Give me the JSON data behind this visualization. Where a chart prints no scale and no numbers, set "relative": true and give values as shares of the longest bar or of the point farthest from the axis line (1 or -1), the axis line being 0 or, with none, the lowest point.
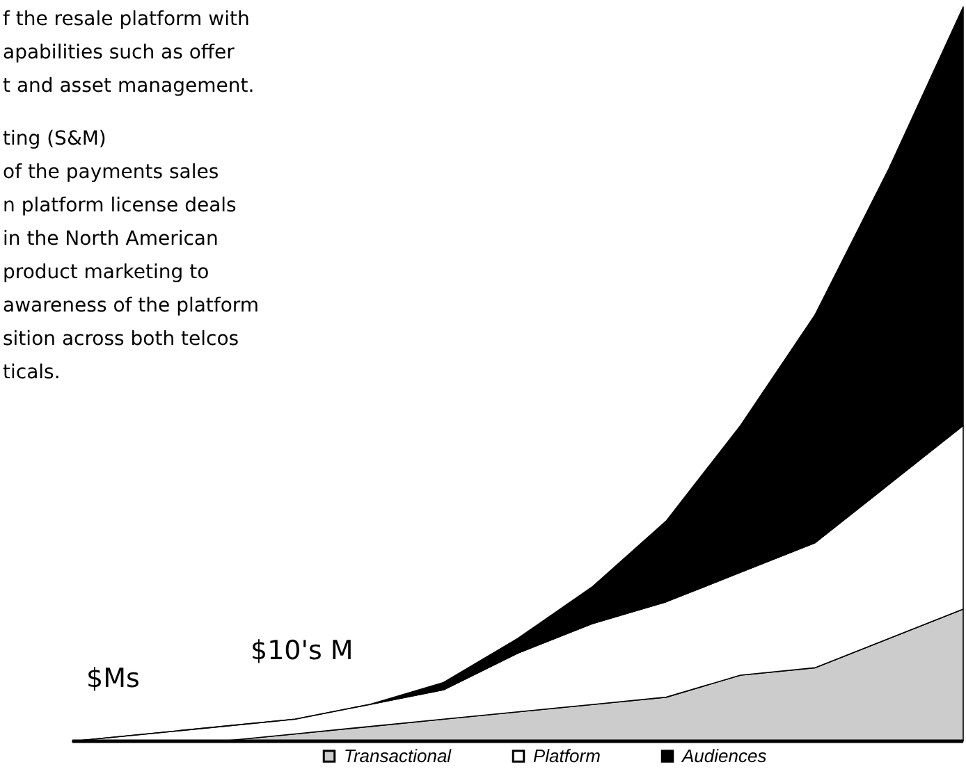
{
  "chart_data": {
    "type": "area",
    "stacked": true,
    "relative": true,
    "legend": "bottom",
    "categories": [
      null,
      null,
      null,
      null,
      null,
      null,
      null,
      null,
      null,
      null,
      null,
      null,
      null
    ],
    "series": [
      {
        "name": "Transactional",
        "color": "#cccccc",
        "values": [
          0,
          0,
          0,
          0.01,
          0.02,
          0.03,
          0.04,
          0.05,
          0.06,
          0.09,
          0.1,
          0.14,
          0.18
        ]
      },
      {
        "name": "Platform",
        "color": "#ffffff",
        "values": [
          0,
          0.01,
          0.02,
          0.02,
          0.03,
          0.04,
          0.08,
          0.11,
          0.13,
          0.14,
          0.17,
          0.21,
          0.25
        ]
      },
      {
        "name": "Audiences",
        "color": "#000000",
        "values": [
          0,
          0,
          0,
          0,
          0,
          0.01,
          0.02,
          0.05,
          0.11,
          0.2,
          0.31,
          0.43,
          0.57
        ]
      }
    ],
    "annotations": [
      "f the resale platform with",
      "apabilities such as offer",
      "t and asset management.",
      "ting (S&M)",
      "of the payments sales",
      "n platform license deals",
      "in the North American",
      "product marketing to",
      "awareness of the platform",
      "sition across both telcos",
      "ticals.",
      "$Ms",
      "$10's M"
    ]
  }
}
